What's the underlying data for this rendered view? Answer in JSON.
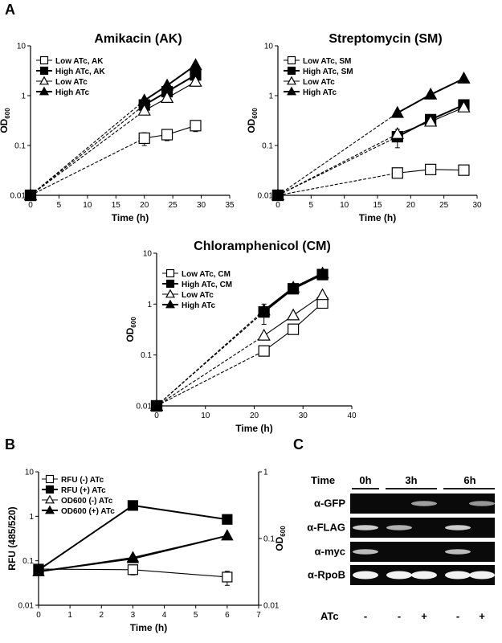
{
  "panels": {
    "A": "A",
    "B": "B",
    "C": "C"
  },
  "chart_data": [
    {
      "id": "ak",
      "type": "line",
      "yscale": "log",
      "title": "Amikacin (AK)",
      "xlabel": "Time (h)",
      "ylabel": "OD600",
      "xlim": [
        0,
        35
      ],
      "xticks": [
        0,
        5,
        10,
        15,
        20,
        25,
        30,
        35
      ],
      "ylim": [
        0.01,
        10
      ],
      "yticks": [
        0.01,
        0.1,
        1,
        10
      ],
      "legend_position": "top-left",
      "series": [
        {
          "name": "Low ATc, AK",
          "marker": "open-square",
          "x": [
            0,
            20,
            24,
            29
          ],
          "y": [
            0.01,
            0.14,
            0.165,
            0.25
          ],
          "err": [
            0,
            0.04,
            0.04,
            0.06
          ]
        },
        {
          "name": "High ATc, AK",
          "marker": "filled-square",
          "x": [
            0,
            20,
            24,
            29
          ],
          "y": [
            0.01,
            0.65,
            1.2,
            2.6
          ],
          "err": [
            0,
            0,
            0,
            0
          ]
        },
        {
          "name": "Low ATc",
          "marker": "open-triangle",
          "x": [
            0,
            20,
            24,
            29
          ],
          "y": [
            0.01,
            0.5,
            0.9,
            1.9
          ],
          "err": [
            0,
            0,
            0,
            0
          ]
        },
        {
          "name": "High ATc",
          "marker": "filled-triangle",
          "x": [
            0,
            20,
            24,
            29
          ],
          "y": [
            0.01,
            0.8,
            1.6,
            4.1
          ],
          "err": [
            0,
            0,
            0,
            0
          ]
        }
      ]
    },
    {
      "id": "sm",
      "type": "line",
      "yscale": "log",
      "title": "Streptomycin (SM)",
      "xlabel": "Time (h)",
      "ylabel": "OD600",
      "xlim": [
        0,
        30
      ],
      "xticks": [
        0,
        5,
        10,
        15,
        20,
        25,
        30
      ],
      "ylim": [
        0.01,
        10
      ],
      "yticks": [
        0.01,
        0.1,
        1,
        10
      ],
      "legend_position": "top-left",
      "series": [
        {
          "name": "Low ATc, SM",
          "marker": "open-square",
          "x": [
            0,
            18,
            23,
            28
          ],
          "y": [
            0.01,
            0.028,
            0.033,
            0.032
          ],
          "err": [
            0,
            0.005,
            0.005,
            0.004
          ]
        },
        {
          "name": "High ATc, SM",
          "marker": "filled-square",
          "x": [
            0,
            18,
            23,
            28
          ],
          "y": [
            0.01,
            0.15,
            0.33,
            0.65
          ],
          "err": [
            0,
            0.06,
            0.05,
            0.08
          ]
        },
        {
          "name": "Low ATc",
          "marker": "open-triangle",
          "x": [
            0,
            18,
            23,
            28
          ],
          "y": [
            0.01,
            0.17,
            0.3,
            0.58
          ],
          "err": [
            0,
            0,
            0,
            0
          ]
        },
        {
          "name": "High ATc",
          "marker": "filled-triangle",
          "x": [
            0,
            18,
            23,
            28
          ],
          "y": [
            0.01,
            0.45,
            1.05,
            2.2
          ],
          "err": [
            0,
            0,
            0,
            0
          ]
        }
      ]
    },
    {
      "id": "cm",
      "type": "line",
      "yscale": "log",
      "title": "Chloramphenicol (CM)",
      "xlabel": "Time (h)",
      "ylabel": "OD600",
      "xlim": [
        0,
        40
      ],
      "xticks": [
        0,
        10,
        20,
        30,
        40
      ],
      "ylim": [
        0.01,
        10
      ],
      "yticks": [
        0.01,
        0.1,
        1,
        10
      ],
      "legend_position": "top-left",
      "series": [
        {
          "name": "Low ATc, CM",
          "marker": "open-square",
          "x": [
            0,
            22,
            28,
            34
          ],
          "y": [
            0.01,
            0.12,
            0.32,
            1.05
          ],
          "err": [
            0,
            0,
            0,
            0
          ]
        },
        {
          "name": "High ATc, CM",
          "marker": "filled-square",
          "x": [
            0,
            22,
            28,
            34
          ],
          "y": [
            0.01,
            0.7,
            2.0,
            3.8
          ],
          "err": [
            0,
            0.3,
            0.3,
            0.5
          ]
        },
        {
          "name": "Low ATc",
          "marker": "open-triangle",
          "x": [
            0,
            22,
            28,
            34
          ],
          "y": [
            0.01,
            0.24,
            0.6,
            1.5
          ],
          "err": [
            0,
            0,
            0,
            0
          ]
        },
        {
          "name": "High ATc",
          "marker": "filled-triangle",
          "x": [
            0,
            22,
            28,
            34
          ],
          "y": [
            0.01,
            0.75,
            2.1,
            4.0
          ],
          "err": [
            0,
            0,
            0,
            0
          ]
        }
      ]
    },
    {
      "id": "b",
      "type": "line",
      "yscale": "log",
      "xlabel": "Time (h)",
      "ylabel": "RFU (485/520)",
      "y2label": "OD600",
      "xlim": [
        0,
        7
      ],
      "xticks": [
        0,
        1,
        2,
        3,
        4,
        5,
        6,
        7
      ],
      "ylim": [
        0.01,
        10
      ],
      "yticks": [
        0.01,
        0.1,
        1,
        10
      ],
      "y2lim": [
        0.01,
        1
      ],
      "y2ticks": [
        0.01,
        0.1,
        1
      ],
      "legend_position": "top-left",
      "series": [
        {
          "name": "RFU (-) ATc",
          "marker": "open-square",
          "axis": "left",
          "x": [
            0,
            3,
            6
          ],
          "y": [
            0.065,
            0.063,
            0.043
          ],
          "err": [
            0,
            0.015,
            0.015
          ]
        },
        {
          "name": "RFU (+) ATc",
          "marker": "filled-square",
          "axis": "left",
          "x": [
            0,
            3,
            6
          ],
          "y": [
            0.062,
            1.75,
            0.85
          ],
          "err": [
            0,
            0,
            0
          ]
        },
        {
          "name": "OD600 (-) ATc",
          "marker": "open-triangle",
          "axis": "right",
          "x": [
            0,
            3,
            6
          ],
          "y": [
            0.032,
            0.052,
            0.11
          ],
          "err": [
            0,
            0,
            0
          ]
        },
        {
          "name": "OD600 (+) ATc",
          "marker": "filled-triangle",
          "axis": "right",
          "x": [
            0,
            3,
            6
          ],
          "y": [
            0.032,
            0.05,
            0.11
          ],
          "err": [
            0,
            0,
            0
          ]
        }
      ]
    }
  ],
  "blot": {
    "time_label": "Time",
    "timepoints": [
      "0h",
      "3h",
      "6h"
    ],
    "rows": [
      "α-GFP",
      "α-FLAG",
      "α-myc",
      "α-RpoB"
    ],
    "atc_label": "ATc",
    "atc": [
      "-",
      "-",
      "+",
      "-",
      "+"
    ],
    "band_intensity": [
      [
        0,
        0,
        0.55,
        0,
        0.5
      ],
      [
        0.8,
        0.65,
        0,
        0.8,
        0
      ],
      [
        0.7,
        0,
        0,
        0.7,
        0
      ],
      [
        1,
        1,
        1,
        1,
        1
      ]
    ]
  }
}
